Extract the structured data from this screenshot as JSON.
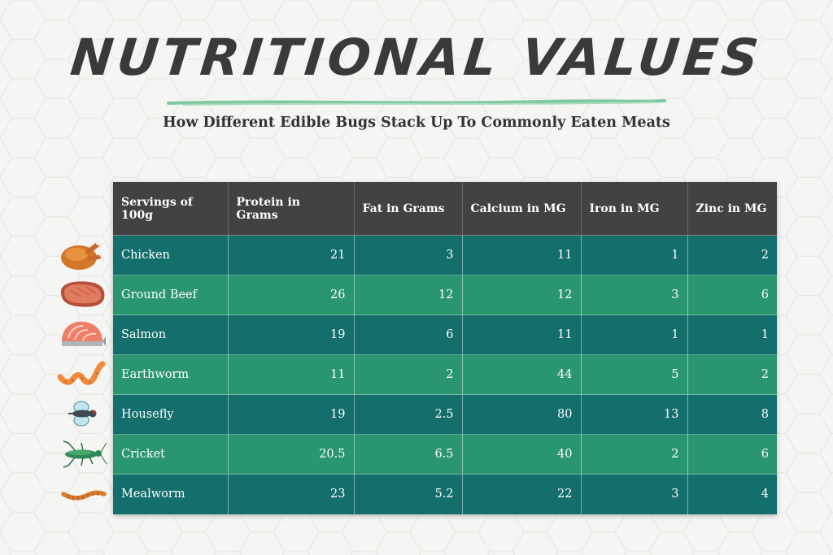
{
  "title": "NUTRITIONAL VALUES",
  "subtitle": "How Different Edible Bugs Stack Up To Commonly Eaten Meats",
  "colors": {
    "header_bg": "#424242",
    "row_dark": "#136e6c",
    "row_light": "#2a9670",
    "accent_line": "#7fc8a0",
    "background": "#f5f5f3"
  },
  "icons": [
    "chicken-icon",
    "steak-icon",
    "salmon-icon",
    "earthworm-icon",
    "housefly-icon",
    "cricket-icon",
    "mealworm-icon"
  ],
  "chart_data": {
    "type": "table",
    "columns": [
      "Servings of 100g",
      "Protein in Grams",
      "Fat in Grams",
      "Calcium in MG",
      "Iron in MG",
      "Zinc in MG"
    ],
    "rows": [
      [
        "Chicken",
        "21",
        "3",
        "11",
        "1",
        "2"
      ],
      [
        "Ground Beef",
        "26",
        "12",
        "12",
        "3",
        "6"
      ],
      [
        "Salmon",
        "19",
        "6",
        "11",
        "1",
        "1"
      ],
      [
        "Earthworm",
        "11",
        "2",
        "44",
        "5",
        "2"
      ],
      [
        "Housefly",
        "19",
        "2.5",
        "80",
        "13",
        "8"
      ],
      [
        "Cricket",
        "20.5",
        "6.5",
        "40",
        "2",
        "6"
      ],
      [
        "Mealworm",
        "23",
        "5.2",
        "22",
        "3",
        "4"
      ]
    ]
  }
}
